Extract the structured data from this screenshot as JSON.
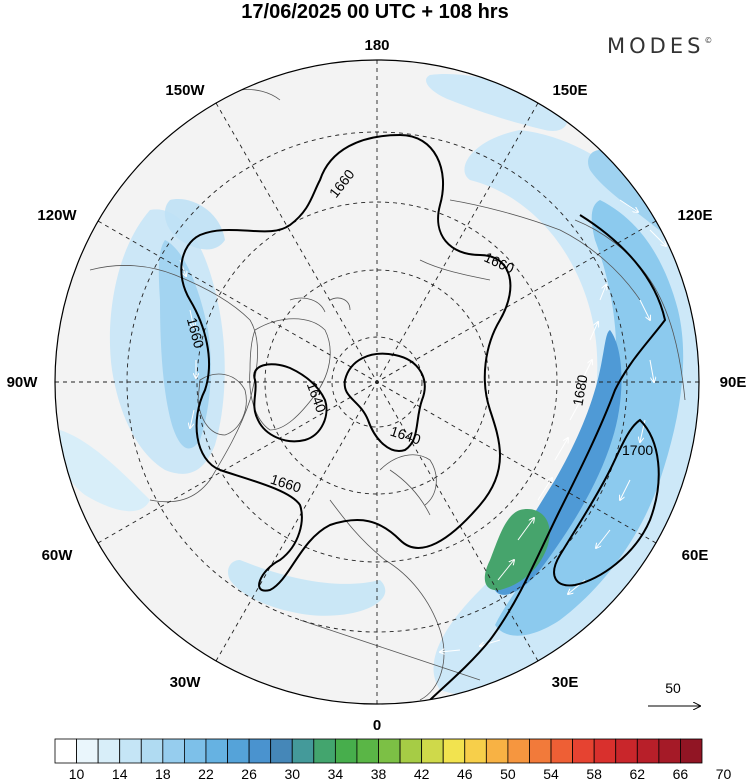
{
  "title": "17/06/2025  00 UTC  + 108 hrs",
  "brand": {
    "name": "MODES",
    "mark": "©"
  },
  "meridian_labels": {
    "top": "180",
    "top_left": "150W",
    "top_right": "150E",
    "upper_left": "120W",
    "upper_right": "120E",
    "left": "90W",
    "right": "90E",
    "lower_left": "60W",
    "lower_right": "60E",
    "bottom_left": "30W",
    "bottom_right": "30E",
    "bottom": "0"
  },
  "contour_labels": {
    "c1660_north": "1660",
    "c1660_east": "1660",
    "c1660_west": "1660",
    "c1660_south": "1660",
    "c1640_west": "1640",
    "c1640_east": "1640",
    "c1680": "1680",
    "c1700": "1700"
  },
  "vector_reference": {
    "value": "50"
  },
  "colorbar": {
    "tick_labels": [
      "10",
      "14",
      "18",
      "22",
      "26",
      "30",
      "34",
      "38",
      "42",
      "46",
      "50",
      "54",
      "58",
      "62",
      "66",
      "70"
    ],
    "colors": [
      "#ffffff",
      "#eaf6fc",
      "#d8eef9",
      "#c5e5f6",
      "#b0dbf2",
      "#96cdee",
      "#7dc0e9",
      "#66b2e2",
      "#55a3d9",
      "#4a93cf",
      "#4587b8",
      "#449a9a",
      "#43a56e",
      "#47ae4c",
      "#5ab646",
      "#7cc045",
      "#a6cc45",
      "#cfd94a",
      "#f2e34f",
      "#f7cf4a",
      "#f8b244",
      "#f6963f",
      "#f27a3a",
      "#ee5f35",
      "#e64331",
      "#d9302d",
      "#c9262b",
      "#b81f29",
      "#a51a27",
      "#911524"
    ]
  }
}
